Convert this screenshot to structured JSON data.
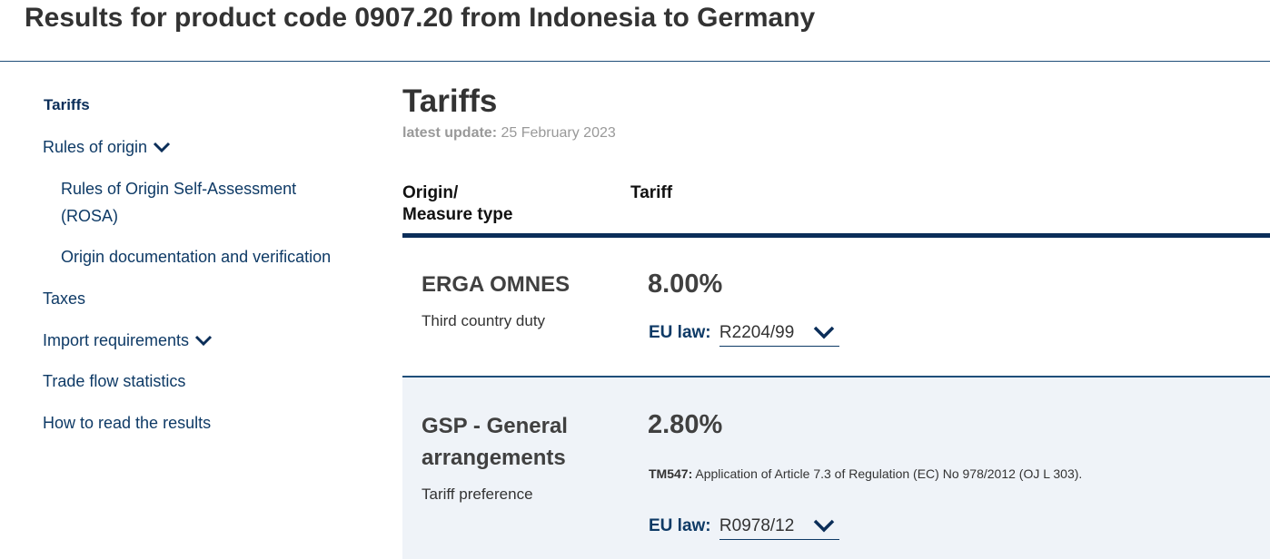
{
  "header": {
    "title": "Results for product code 0907.20 from Indonesia to Germany"
  },
  "sidebar": {
    "items": [
      {
        "label": "Tariffs"
      },
      {
        "label": "Rules of origin",
        "icon": "chevron-down-icon"
      },
      {
        "label": "Rules of Origin Self-Assessment (ROSA)"
      },
      {
        "label": "Origin documentation and verification"
      },
      {
        "label": "Taxes"
      },
      {
        "label": "Import requirements",
        "icon": "chevron-down-icon"
      },
      {
        "label": "Trade flow statistics"
      },
      {
        "label": "How to read the results"
      }
    ]
  },
  "main": {
    "title": "Tariffs",
    "update_label": "latest update:",
    "update_date": "25 February 2023",
    "columns": {
      "origin": "Origin/",
      "measure_type": "Measure type",
      "tariff": "Tariff"
    },
    "rows": [
      {
        "origin": "ERGA OMNES",
        "measure": "Third country duty",
        "rate": "8.00%",
        "law_label": "EU law:",
        "law_value": "R2204/99"
      },
      {
        "origin_line1": "GSP - General",
        "origin_line2": "arrangements",
        "measure": "Tariff preference",
        "rate": "2.80%",
        "note_code": "TM547:",
        "note_text": "Application of Article 7.3 of Regulation (EC) No 978/2012 (OJ L 303).",
        "law_label": "EU law:",
        "law_value": "R0978/12"
      }
    ]
  },
  "colors": {
    "accent": "#0b2e59",
    "link": "#0e3a66",
    "row_alt_bg": "#eff3f8"
  }
}
